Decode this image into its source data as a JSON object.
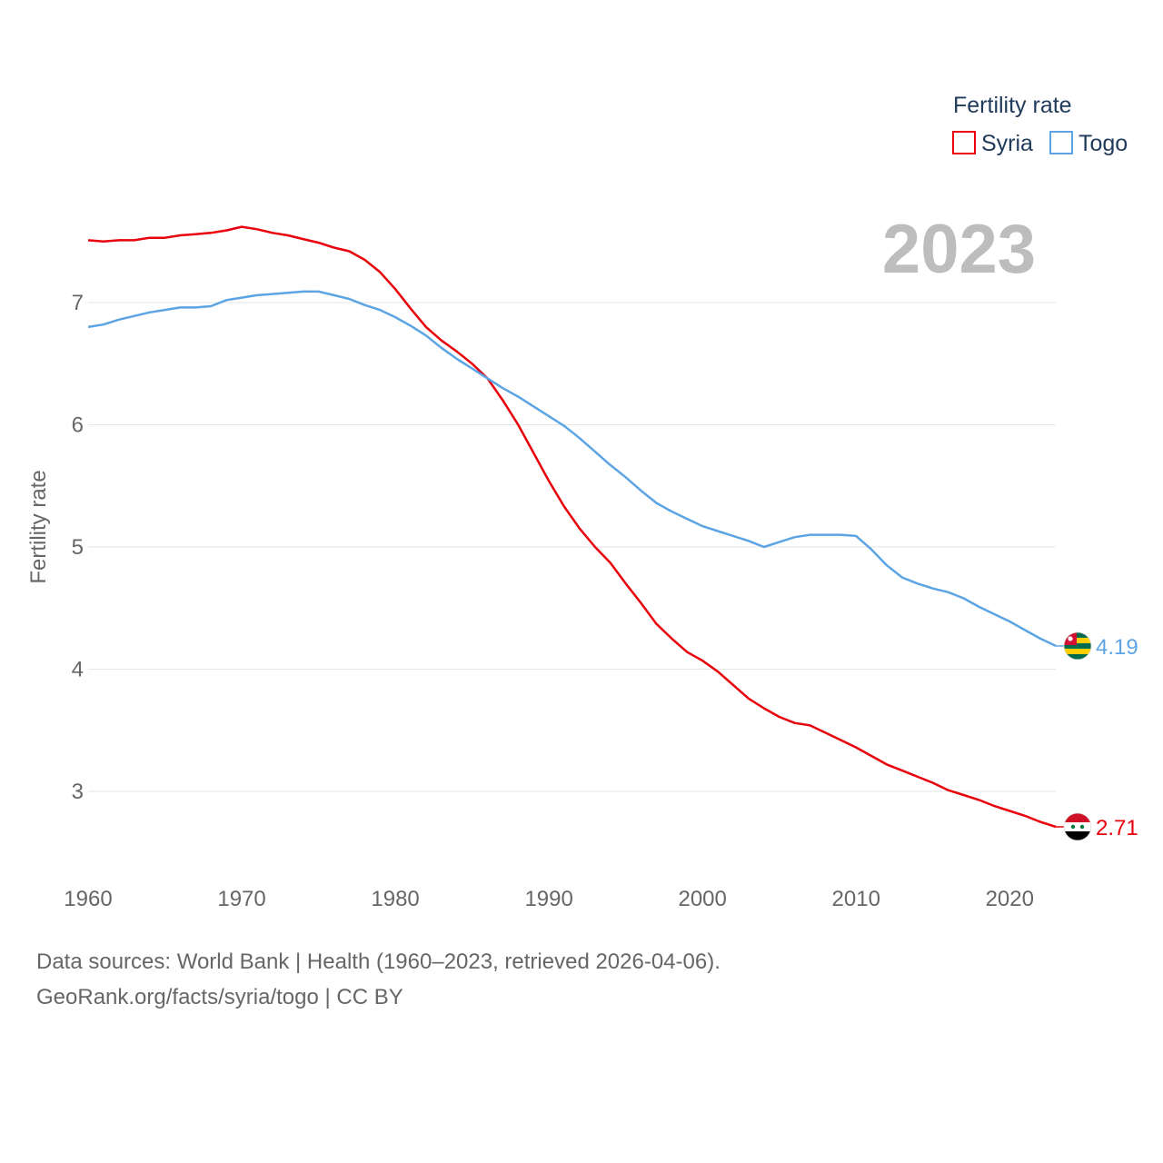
{
  "chart_data": {
    "type": "line",
    "title": "",
    "ylabel": "Fertility rate",
    "xlabel": "",
    "year_label": "2023",
    "legend": {
      "title": "Fertility rate",
      "position": "top-right"
    },
    "xlim": [
      1960,
      2023
    ],
    "ylim": [
      2.5,
      7.75
    ],
    "x_ticks": [
      1960,
      1970,
      1980,
      1990,
      2000,
      2010,
      2020
    ],
    "y_ticks": [
      3,
      4,
      5,
      6,
      7
    ],
    "x": [
      1960,
      1961,
      1962,
      1963,
      1964,
      1965,
      1966,
      1967,
      1968,
      1969,
      1970,
      1971,
      1972,
      1973,
      1974,
      1975,
      1976,
      1977,
      1978,
      1979,
      1980,
      1981,
      1982,
      1983,
      1984,
      1985,
      1986,
      1987,
      1988,
      1989,
      1990,
      1991,
      1992,
      1993,
      1994,
      1995,
      1996,
      1997,
      1998,
      1999,
      2000,
      2001,
      2002,
      2003,
      2004,
      2005,
      2006,
      2007,
      2008,
      2009,
      2010,
      2011,
      2012,
      2013,
      2014,
      2015,
      2016,
      2017,
      2018,
      2019,
      2020,
      2021,
      2022,
      2023
    ],
    "series": [
      {
        "name": "Syria",
        "color": "#e8000b",
        "end_label": "2.71",
        "flag": "syria-flag-icon",
        "values": [
          7.51,
          7.5,
          7.51,
          7.51,
          7.53,
          7.53,
          7.55,
          7.56,
          7.57,
          7.59,
          7.62,
          7.6,
          7.57,
          7.55,
          7.52,
          7.49,
          7.45,
          7.42,
          7.35,
          7.25,
          7.11,
          6.95,
          6.8,
          6.69,
          6.6,
          6.5,
          6.38,
          6.2,
          6.0,
          5.77,
          5.54,
          5.33,
          5.15,
          5.0,
          4.87,
          4.7,
          4.54,
          4.37,
          4.25,
          4.14,
          4.07,
          3.98,
          3.87,
          3.76,
          3.68,
          3.61,
          3.56,
          3.54,
          3.48,
          3.42,
          3.36,
          3.29,
          3.22,
          3.17,
          3.12,
          3.07,
          3.01,
          2.97,
          2.93,
          2.88,
          2.84,
          2.8,
          2.75,
          2.71
        ]
      },
      {
        "name": "Togo",
        "color": "#5ca4e4",
        "end_label": "4.19",
        "flag": "togo-flag-icon",
        "values": [
          6.8,
          6.82,
          6.86,
          6.89,
          6.92,
          6.94,
          6.96,
          6.96,
          6.97,
          7.02,
          7.04,
          7.06,
          7.07,
          7.08,
          7.09,
          7.09,
          7.06,
          7.03,
          6.98,
          6.94,
          6.88,
          6.81,
          6.73,
          6.63,
          6.54,
          6.46,
          6.38,
          6.3,
          6.23,
          6.15,
          6.07,
          5.99,
          5.89,
          5.78,
          5.67,
          5.57,
          5.46,
          5.36,
          5.29,
          5.23,
          5.17,
          5.13,
          5.09,
          5.05,
          5.0,
          5.04,
          5.08,
          5.1,
          5.1,
          5.1,
          5.09,
          4.98,
          4.85,
          4.75,
          4.7,
          4.66,
          4.63,
          4.58,
          4.51,
          4.45,
          4.39,
          4.32,
          4.25,
          4.19
        ]
      }
    ]
  },
  "footer": {
    "source_line": "Data sources: World Bank | Health (1960–2023, retrieved 2026-04-06).",
    "attribution_line": "GeoRank.org/facts/syria/togo | CC BY"
  },
  "colors": {
    "grid": "#e6e6e6",
    "tick_text": "#666666",
    "year_text": "#bdbdbd"
  }
}
